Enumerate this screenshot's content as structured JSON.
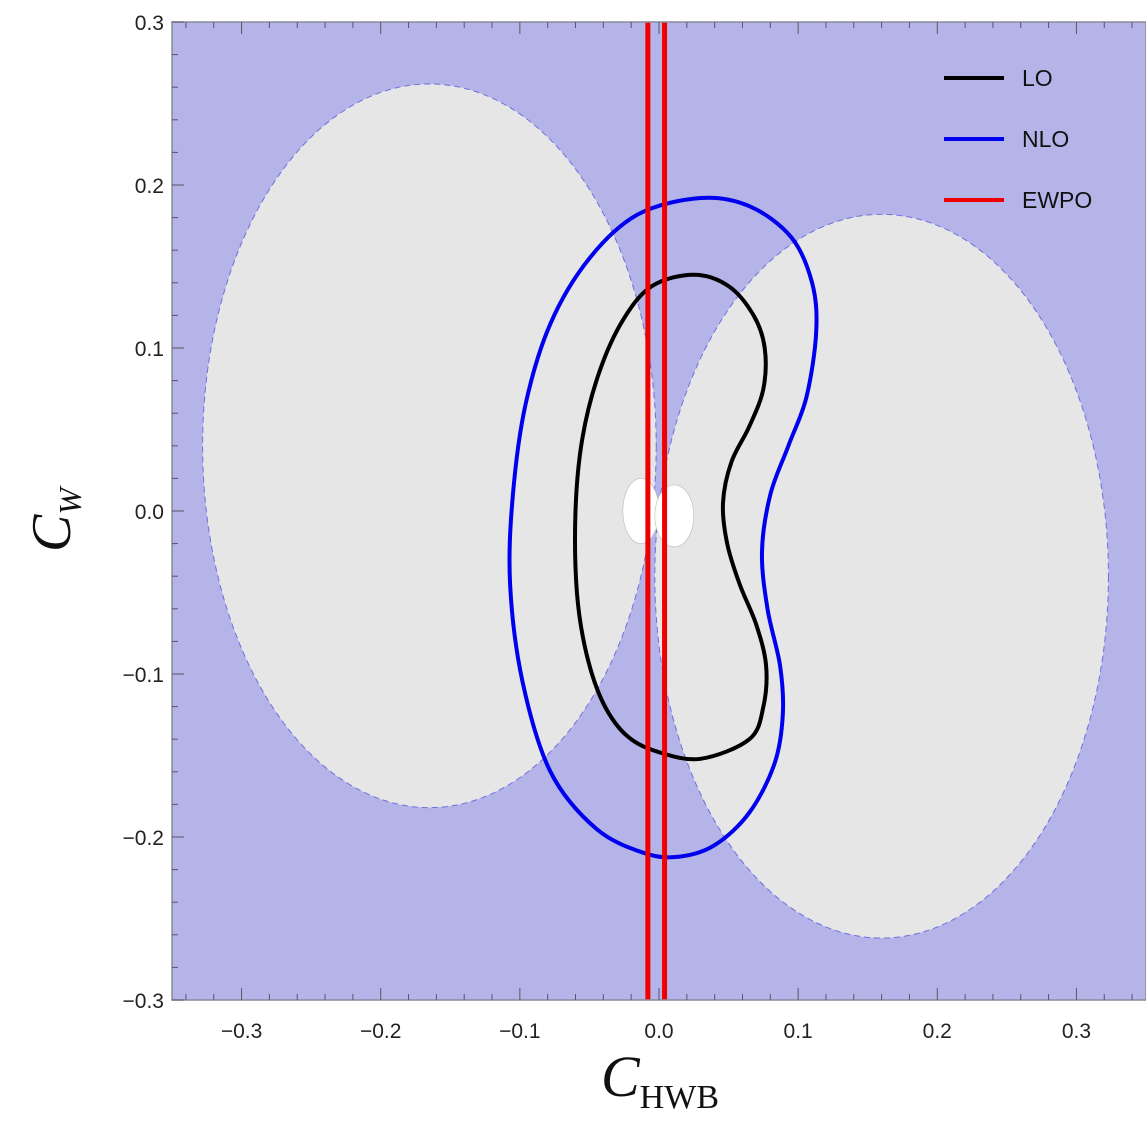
{
  "chart_data": {
    "type": "contour",
    "xlabel": "C",
    "xlabel_sub": "HWB",
    "ylabel": "C",
    "ylabel_sub": "W",
    "xlim": [
      -0.35,
      0.35
    ],
    "ylim": [
      -0.3,
      0.3
    ],
    "x_ticks": [
      -0.3,
      -0.2,
      -0.1,
      0.0,
      0.1,
      0.2,
      0.3
    ],
    "x_tick_labels": [
      "−0.3",
      "−0.2",
      "−0.1",
      "0.0",
      "0.1",
      "0.2",
      "0.3"
    ],
    "y_ticks": [
      -0.3,
      -0.2,
      -0.1,
      0.0,
      0.1,
      0.2,
      0.3
    ],
    "y_tick_labels": [
      "−0.3",
      "−0.2",
      "−0.1",
      "0.0",
      "0.1",
      "0.2",
      "0.3"
    ],
    "grid": false,
    "legend_position": "top-right",
    "background_region": {
      "color": "#b4b4e8"
    },
    "excluded_regions": [
      {
        "shape": "ellipse",
        "cx": -0.165,
        "cy": 0.04,
        "rx": 0.163,
        "ry": 0.222,
        "color": "#e6e6e6"
      },
      {
        "shape": "ellipse",
        "cx": 0.16,
        "cy": -0.04,
        "rx": 0.163,
        "ry": 0.222,
        "color": "#e6e6e6"
      }
    ],
    "central_hole": {
      "cx": -0.001,
      "cy": 0.0,
      "color": "#ffffff"
    },
    "series": [
      {
        "name": "LO",
        "kind": "closed-contour",
        "color": "#000000",
        "points": [
          [
            0.025,
            0.145
          ],
          [
            0.05,
            0.138
          ],
          [
            0.068,
            0.12
          ],
          [
            0.076,
            0.1
          ],
          [
            0.075,
            0.075
          ],
          [
            0.065,
            0.052
          ],
          [
            0.052,
            0.03
          ],
          [
            0.046,
            0.005
          ],
          [
            0.049,
            -0.02
          ],
          [
            0.058,
            -0.045
          ],
          [
            0.07,
            -0.07
          ],
          [
            0.077,
            -0.095
          ],
          [
            0.075,
            -0.12
          ],
          [
            0.065,
            -0.14
          ],
          [
            0.03,
            -0.152
          ],
          [
            0.0,
            -0.148
          ],
          [
            -0.023,
            -0.138
          ],
          [
            -0.04,
            -0.118
          ],
          [
            -0.052,
            -0.088
          ],
          [
            -0.059,
            -0.05
          ],
          [
            -0.06,
            0.0
          ],
          [
            -0.055,
            0.045
          ],
          [
            -0.043,
            0.085
          ],
          [
            -0.026,
            0.117
          ],
          [
            -0.005,
            0.138
          ]
        ]
      },
      {
        "name": "NLO",
        "kind": "closed-contour",
        "color": "#0000ee",
        "points": [
          [
            0.03,
            0.192
          ],
          [
            0.065,
            0.187
          ],
          [
            0.095,
            0.168
          ],
          [
            0.11,
            0.14
          ],
          [
            0.113,
            0.11
          ],
          [
            0.106,
            0.07
          ],
          [
            0.093,
            0.04
          ],
          [
            0.08,
            0.01
          ],
          [
            0.074,
            -0.025
          ],
          [
            0.078,
            -0.06
          ],
          [
            0.087,
            -0.095
          ],
          [
            0.089,
            -0.125
          ],
          [
            0.083,
            -0.155
          ],
          [
            0.065,
            -0.185
          ],
          [
            0.04,
            -0.205
          ],
          [
            0.015,
            -0.212
          ],
          [
            -0.01,
            -0.21
          ],
          [
            -0.045,
            -0.195
          ],
          [
            -0.078,
            -0.16
          ],
          [
            -0.098,
            -0.105
          ],
          [
            -0.107,
            -0.045
          ],
          [
            -0.105,
            0.01
          ],
          [
            -0.096,
            0.065
          ],
          [
            -0.078,
            0.115
          ],
          [
            -0.05,
            0.155
          ],
          [
            -0.015,
            0.182
          ]
        ]
      },
      {
        "name": "EWPO",
        "kind": "vertical-band",
        "color": "#ee0000",
        "x_values": [
          -0.008,
          0.004
        ]
      }
    ]
  }
}
